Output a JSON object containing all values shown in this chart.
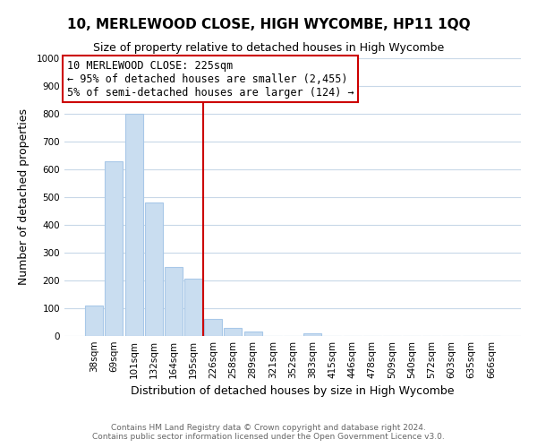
{
  "title": "10, MERLEWOOD CLOSE, HIGH WYCOMBE, HP11 1QQ",
  "subtitle": "Size of property relative to detached houses in High Wycombe",
  "xlabel": "Distribution of detached houses by size in High Wycombe",
  "ylabel": "Number of detached properties",
  "bar_labels": [
    "38sqm",
    "69sqm",
    "101sqm",
    "132sqm",
    "164sqm",
    "195sqm",
    "226sqm",
    "258sqm",
    "289sqm",
    "321sqm",
    "352sqm",
    "383sqm",
    "415sqm",
    "446sqm",
    "478sqm",
    "509sqm",
    "540sqm",
    "572sqm",
    "603sqm",
    "635sqm",
    "666sqm"
  ],
  "bar_values": [
    110,
    630,
    800,
    480,
    250,
    205,
    60,
    30,
    15,
    0,
    0,
    10,
    0,
    0,
    0,
    0,
    0,
    0,
    0,
    0,
    0
  ],
  "bar_color": "#c9ddf0",
  "bar_edge_color": "#a8c8e8",
  "vline_color": "#cc0000",
  "ylim": [
    0,
    1000
  ],
  "yticks": [
    0,
    100,
    200,
    300,
    400,
    500,
    600,
    700,
    800,
    900,
    1000
  ],
  "annotation_title": "10 MERLEWOOD CLOSE: 225sqm",
  "annotation_line1": "← 95% of detached houses are smaller (2,455)",
  "annotation_line2": "5% of semi-detached houses are larger (124) →",
  "annotation_box_color": "#ffffff",
  "annotation_box_edge": "#cc0000",
  "footer_line1": "Contains HM Land Registry data © Crown copyright and database right 2024.",
  "footer_line2": "Contains public sector information licensed under the Open Government Licence v3.0.",
  "background_color": "#ffffff",
  "grid_color": "#c8d8e8",
  "title_fontsize": 11,
  "subtitle_fontsize": 9,
  "xlabel_fontsize": 9,
  "ylabel_fontsize": 9,
  "tick_fontsize": 7.5,
  "footer_fontsize": 6.5,
  "ann_fontsize": 8.5
}
